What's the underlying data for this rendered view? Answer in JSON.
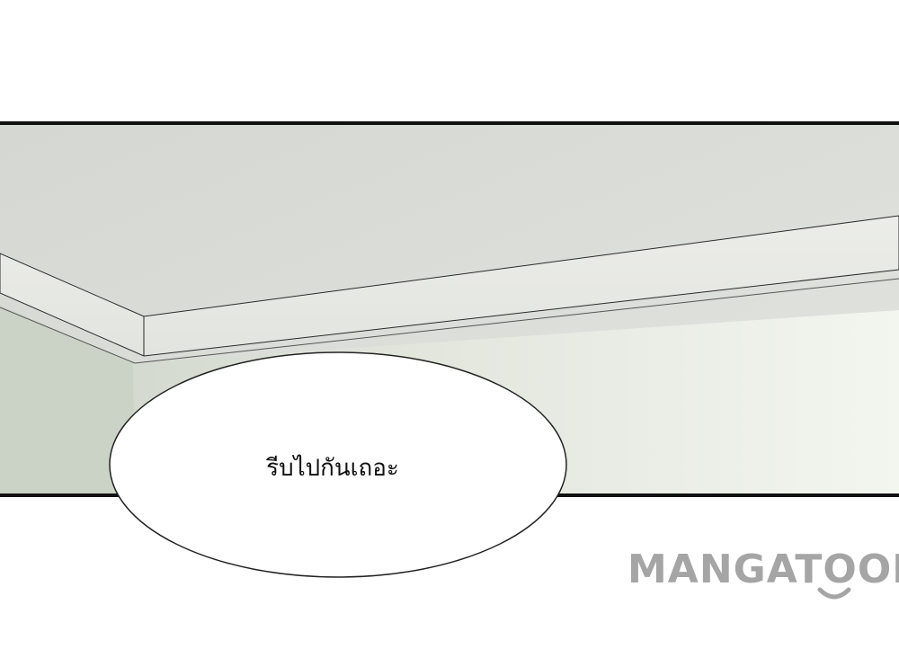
{
  "panel": {
    "speech_bubble_text": "รีบไปกันเถอะ"
  },
  "watermark": {
    "brand_text": "MANGATOON",
    "color": "#a5a5a5"
  },
  "colors": {
    "panel_border": "#111111",
    "ceiling": "#d9dcd7",
    "wall": "#e9ede5"
  }
}
